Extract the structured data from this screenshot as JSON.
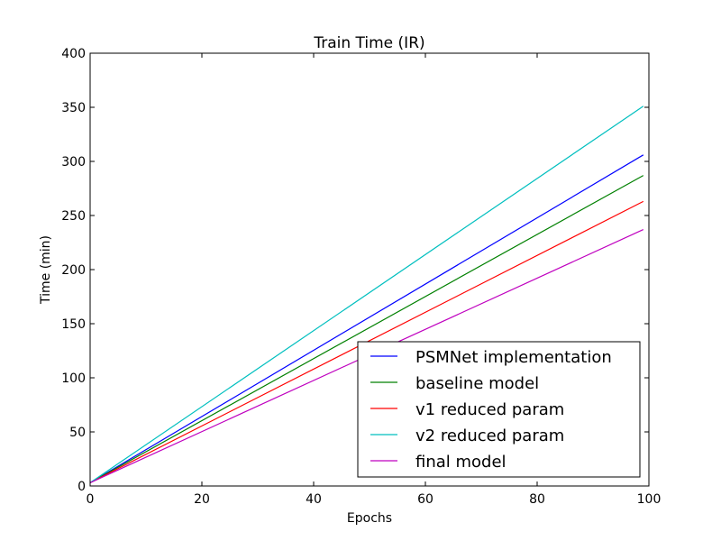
{
  "chart_data": {
    "type": "line",
    "title": "Train Time (IR)",
    "xlabel": "Epochs",
    "ylabel": "Time (min)",
    "xlim": [
      0,
      100
    ],
    "ylim": [
      0,
      400
    ],
    "xticks": [
      0,
      20,
      40,
      60,
      80,
      100
    ],
    "yticks": [
      0,
      50,
      100,
      150,
      200,
      250,
      300,
      350,
      400
    ],
    "grid": false,
    "legend": "lower-right",
    "x": [
      0,
      99
    ],
    "series": [
      {
        "name": "PSMNet implementation",
        "color": "#0000ff",
        "values": [
          3,
          306
        ]
      },
      {
        "name": "baseline model",
        "color": "#008000",
        "values": [
          3,
          287
        ]
      },
      {
        "name": "v1 reduced param",
        "color": "#ff0000",
        "values": [
          3,
          263
        ]
      },
      {
        "name": "v2 reduced param",
        "color": "#00bfbf",
        "values": [
          3,
          351
        ]
      },
      {
        "name": "final model",
        "color": "#bf00bf",
        "values": [
          3,
          237
        ]
      }
    ]
  }
}
